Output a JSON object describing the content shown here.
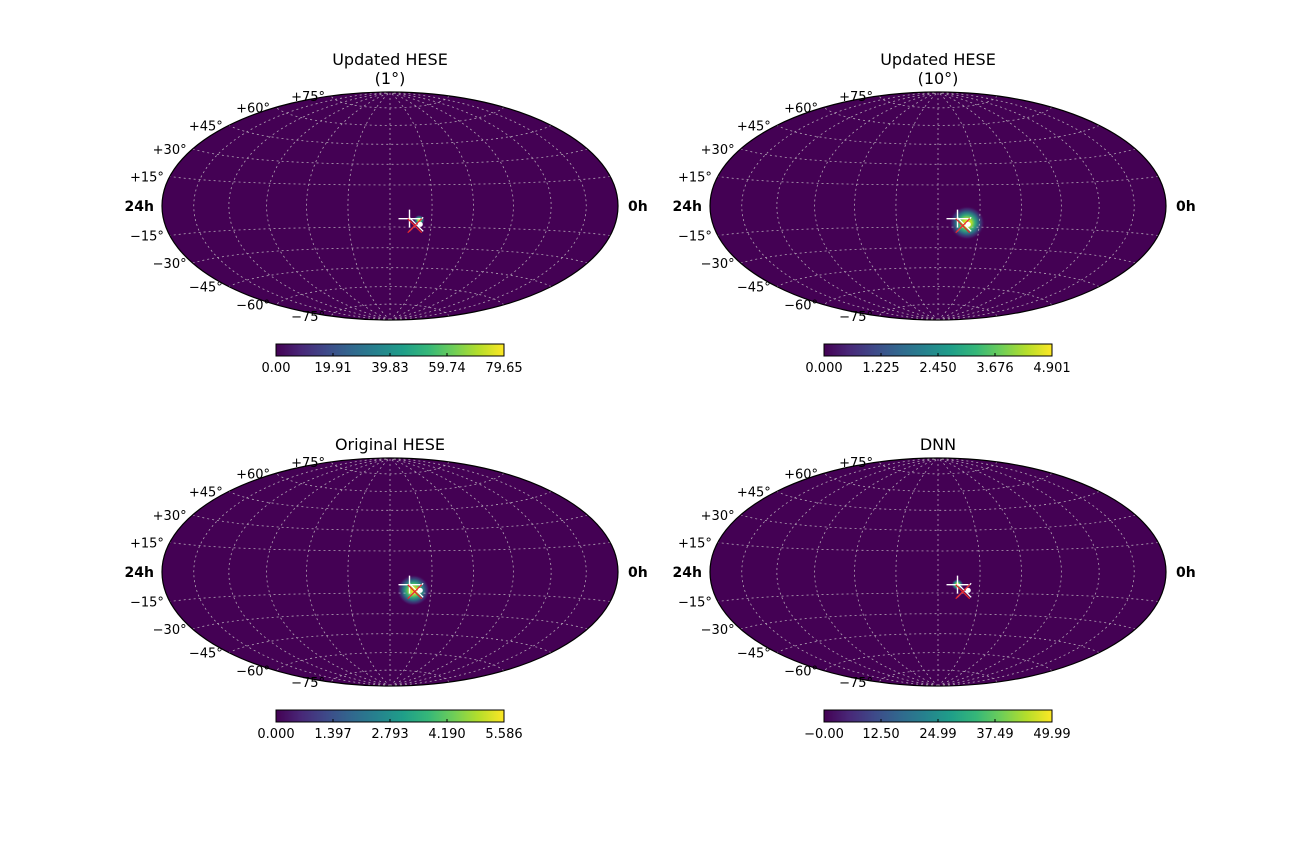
{
  "chart_data": [
    {
      "type": "heatmap",
      "projection": "hammer",
      "title_lines": [
        "Updated HESE",
        "(1°)"
      ],
      "dec_labels": [
        "+75°",
        "+60°",
        "+45°",
        "+30°",
        "+15°",
        "−15°",
        "−30°",
        "−45°",
        "−60°",
        "−75°"
      ],
      "dec_values": [
        75,
        60,
        45,
        30,
        15,
        -15,
        -30,
        -45,
        -60,
        -75
      ],
      "ra_left_label": "24h",
      "ra_right_label": "0h",
      "grid": true,
      "colormap": "viridis",
      "colorbar_ticks": [
        "0.00",
        "19.91",
        "39.83",
        "59.74",
        "79.65"
      ],
      "colorbar_range": [
        0,
        79.65
      ],
      "hotspot": {
        "ra_deg": 159,
        "dec_deg": -10,
        "width_deg": 2.0,
        "peak": 1.0
      },
      "markers": [
        {
          "shape": "plus",
          "ra_deg": 166,
          "dec_deg": -9,
          "color": "#ffffff"
        },
        {
          "shape": "x",
          "ra_deg": 161,
          "dec_deg": -13,
          "color": "#ffffff"
        },
        {
          "shape": "x",
          "ra_deg": 162,
          "dec_deg": -14,
          "color": "#e8262a"
        },
        {
          "shape": "dot",
          "ra_deg": 158,
          "dec_deg": -13,
          "color": "#ffffff"
        }
      ]
    },
    {
      "type": "heatmap",
      "projection": "hammer",
      "title_lines": [
        "Updated HESE",
        "(10°)"
      ],
      "dec_labels": [
        "+75°",
        "+60°",
        "+45°",
        "+30°",
        "+15°",
        "−15°",
        "−30°",
        "−45°",
        "−60°",
        "−75°"
      ],
      "dec_values": [
        75,
        60,
        45,
        30,
        15,
        -15,
        -30,
        -45,
        -60,
        -75
      ],
      "ra_left_label": "24h",
      "ra_right_label": "0h",
      "grid": true,
      "colormap": "viridis",
      "colorbar_ticks": [
        "0.000",
        "1.225",
        "2.450",
        "3.676",
        "4.901"
      ],
      "colorbar_range": [
        0,
        4.901
      ],
      "hotspot": {
        "ra_deg": 159,
        "dec_deg": -12,
        "width_deg": 6.5,
        "peak": 1.0
      },
      "markers": [
        {
          "shape": "plus",
          "ra_deg": 166,
          "dec_deg": -9,
          "color": "#ffffff"
        },
        {
          "shape": "x",
          "ra_deg": 161,
          "dec_deg": -13,
          "color": "#ffffff"
        },
        {
          "shape": "x",
          "ra_deg": 162,
          "dec_deg": -14,
          "color": "#e8262a"
        },
        {
          "shape": "dot",
          "ra_deg": 158,
          "dec_deg": -13,
          "color": "#ffffff"
        }
      ]
    },
    {
      "type": "heatmap",
      "projection": "hammer",
      "title_lines": [
        "Original HESE"
      ],
      "dec_labels": [
        "+75°",
        "+60°",
        "+45°",
        "+30°",
        "+15°",
        "−15°",
        "−30°",
        "−45°",
        "−60°",
        "−75°"
      ],
      "dec_values": [
        75,
        60,
        45,
        30,
        15,
        -15,
        -30,
        -45,
        -60,
        -75
      ],
      "ra_left_label": "24h",
      "ra_right_label": "0h",
      "grid": true,
      "colormap": "viridis",
      "colorbar_ticks": [
        "0.000",
        "1.397",
        "2.793",
        "4.190",
        "5.586"
      ],
      "colorbar_range": [
        0,
        5.586
      ],
      "hotspot": {
        "ra_deg": 163,
        "dec_deg": -13,
        "width_deg": 6.0,
        "peak": 1.0
      },
      "markers": [
        {
          "shape": "plus",
          "ra_deg": 166,
          "dec_deg": -9,
          "color": "#ffffff"
        },
        {
          "shape": "x",
          "ra_deg": 161,
          "dec_deg": -13,
          "color": "#ffffff"
        },
        {
          "shape": "x",
          "ra_deg": 162,
          "dec_deg": -14,
          "color": "#e8262a"
        },
        {
          "shape": "dot",
          "ra_deg": 158,
          "dec_deg": -13,
          "color": "#ffffff"
        }
      ]
    },
    {
      "type": "heatmap",
      "projection": "hammer",
      "title_lines": [
        "DNN"
      ],
      "dec_labels": [
        "+75°",
        "+60°",
        "+45°",
        "+30°",
        "+15°",
        "−15°",
        "−30°",
        "−45°",
        "−60°",
        "−75°"
      ],
      "dec_values": [
        75,
        60,
        45,
        30,
        15,
        -15,
        -30,
        -45,
        -60,
        -75
      ],
      "ra_left_label": "24h",
      "ra_right_label": "0h",
      "grid": true,
      "colormap": "viridis",
      "colorbar_ticks": [
        "−0.00",
        "12.50",
        "24.99",
        "37.49",
        "49.99"
      ],
      "colorbar_range": [
        0,
        49.99
      ],
      "hotspot": {
        "ra_deg": 166,
        "dec_deg": -9,
        "width_deg": 2.2,
        "peak": 1.0
      },
      "markers": [
        {
          "shape": "plus",
          "ra_deg": 166,
          "dec_deg": -9,
          "color": "#ffffff"
        },
        {
          "shape": "x",
          "ra_deg": 161,
          "dec_deg": -13,
          "color": "#ffffff"
        },
        {
          "shape": "x",
          "ra_deg": 162,
          "dec_deg": -14,
          "color": "#e8262a"
        },
        {
          "shape": "dot",
          "ra_deg": 158,
          "dec_deg": -13,
          "color": "#ffffff"
        }
      ]
    }
  ]
}
